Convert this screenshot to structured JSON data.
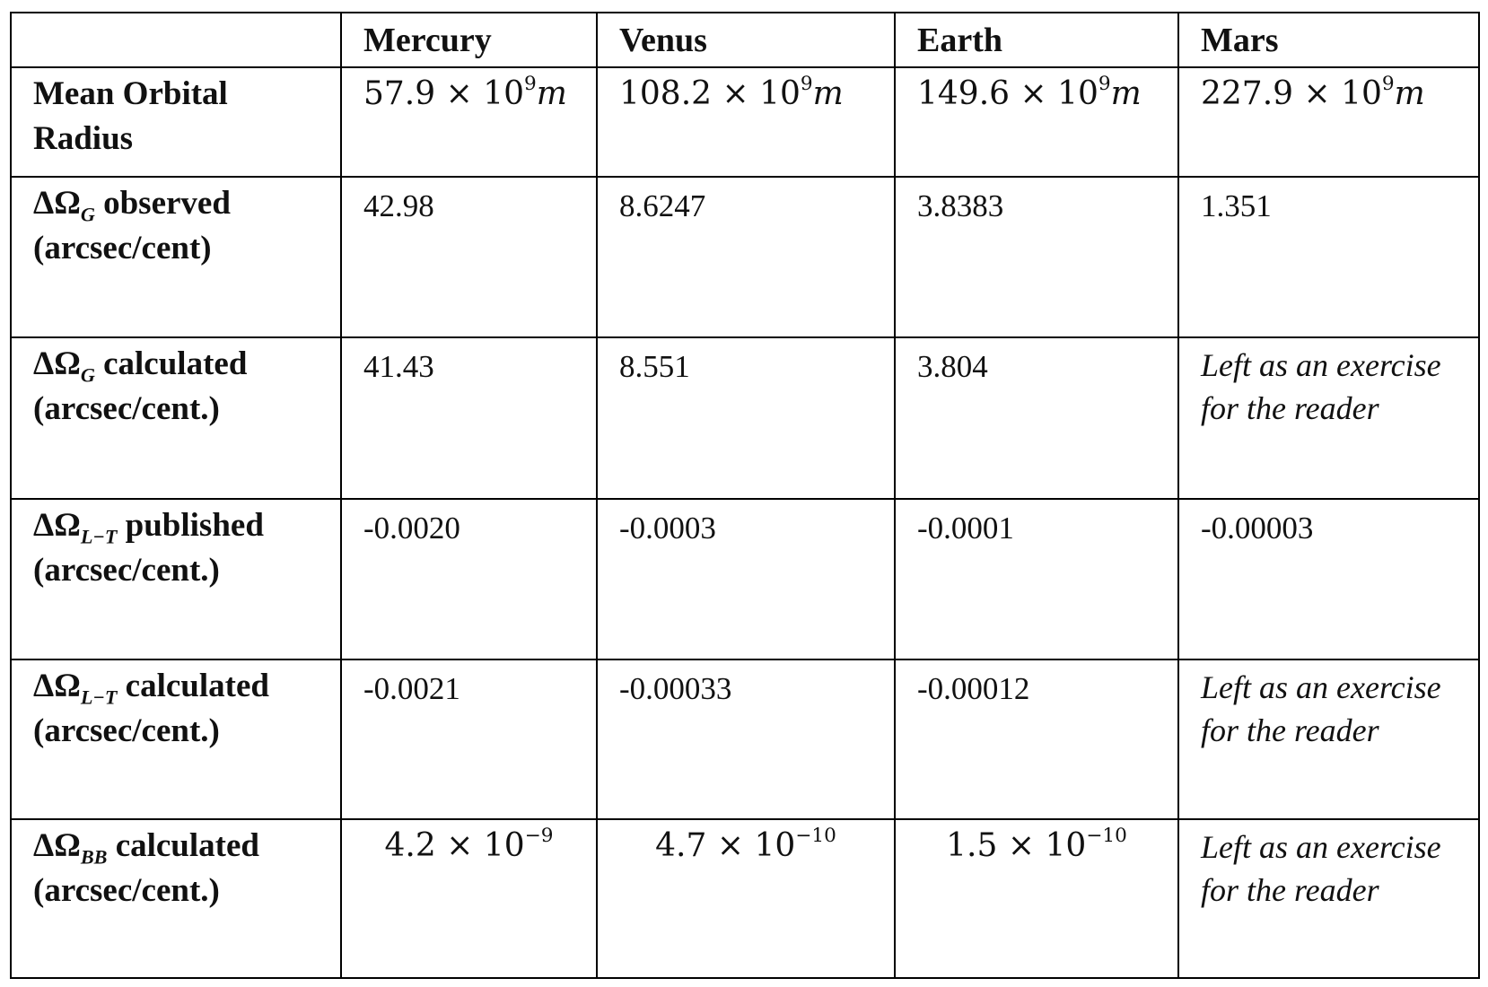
{
  "table": {
    "columns": [
      "Mercury",
      "Venus",
      "Earth",
      "Mars"
    ],
    "rows": [
      {
        "label": {
          "name": "Mean Orbital Radius"
        },
        "cells": [
          {
            "base": "57.9 × 10",
            "exponent": "9",
            "unit": "m"
          },
          {
            "base": "108.2 × 10",
            "exponent": "9",
            "unit": "m"
          },
          {
            "base": "149.6 × 10",
            "exponent": "9",
            "unit": "m"
          },
          {
            "base": "227.9 × 10",
            "exponent": "9",
            "unit": "m"
          }
        ]
      },
      {
        "label": {
          "symbol": "ΔΩ",
          "subscript": "G",
          "name": "observed",
          "unit": "(arcsec/cent)"
        },
        "cells": [
          "42.98",
          "8.6247",
          "3.8383",
          "1.351"
        ]
      },
      {
        "label": {
          "symbol": "ΔΩ",
          "subscript": "G",
          "name": "calculated",
          "unit": "(arcsec/cent.)"
        },
        "cells": [
          "41.43",
          "8.551",
          "3.804",
          "Left as an exercise for the reader"
        ]
      },
      {
        "label": {
          "symbol": "ΔΩ",
          "subscript": "L−T",
          "name": "published",
          "unit": "(arcsec/cent.)"
        },
        "cells": [
          "-0.0020",
          "-0.0003",
          "-0.0001",
          "-0.00003"
        ]
      },
      {
        "label": {
          "symbol": "ΔΩ",
          "subscript": "L−T",
          "name": "calculated",
          "unit": "(arcsec/cent.)"
        },
        "cells": [
          "-0.0021",
          "-0.00033",
          "-0.00012",
          "Left as an exercise for the reader"
        ]
      },
      {
        "label": {
          "symbol": "ΔΩ",
          "subscript": "BB",
          "name": "calculated",
          "unit": "(arcsec/cent.)"
        },
        "cells": [
          {
            "base": "4.2 × 10",
            "exponent": "−9"
          },
          {
            "base": "4.7 × 10",
            "exponent": "−10"
          },
          {
            "base": "1.5 × 10",
            "exponent": "−10"
          },
          "Left as an exercise for the reader"
        ]
      }
    ]
  }
}
